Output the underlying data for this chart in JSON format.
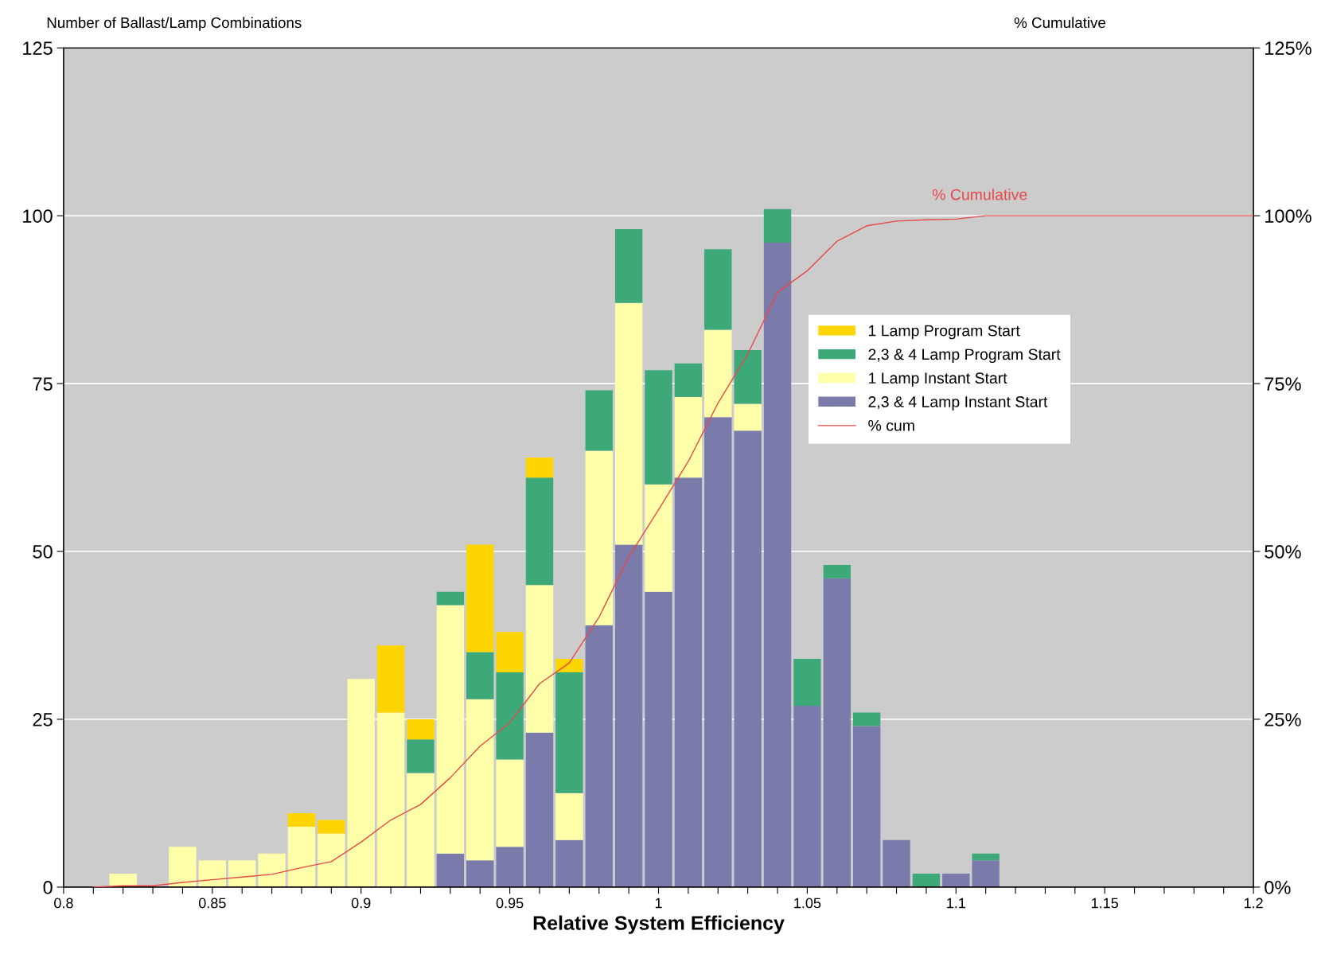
{
  "chart_data": {
    "type": "bar",
    "stacked": true,
    "xlabel": "Relative System Efficiency",
    "ylabel": "Number of Ballast/Lamp Combinations",
    "y2label": "% Cumulative",
    "x": [
      0.82,
      0.83,
      0.84,
      0.85,
      0.86,
      0.87,
      0.88,
      0.89,
      0.9,
      0.91,
      0.92,
      0.93,
      0.94,
      0.95,
      0.96,
      0.97,
      0.98,
      0.99,
      1.0,
      1.01,
      1.02,
      1.03,
      1.04,
      1.05,
      1.06,
      1.07,
      1.08,
      1.09,
      1.1,
      1.11
    ],
    "series": [
      {
        "name": "2,3 & 4 Lamp Instant Start",
        "color": "#7b7bab",
        "values": [
          0,
          0,
          0,
          0,
          0,
          0,
          0,
          0,
          0,
          0,
          0,
          5,
          4,
          6,
          23,
          7,
          39,
          51,
          44,
          61,
          70,
          68,
          96,
          27,
          46,
          24,
          7,
          0,
          2,
          4
        ]
      },
      {
        "name": "1 Lamp Instant Start",
        "color": "#ffffaa",
        "values": [
          2,
          0,
          6,
          4,
          4,
          5,
          9,
          8,
          31,
          26,
          17,
          37,
          24,
          13,
          22,
          7,
          26,
          36,
          16,
          12,
          13,
          4,
          0,
          0,
          0,
          0,
          0,
          0,
          0,
          0
        ]
      },
      {
        "name": "2,3 & 4 Lamp Program Start",
        "color": "#3da878",
        "values": [
          0,
          0,
          0,
          0,
          0,
          0,
          0,
          0,
          0,
          0,
          5,
          2,
          7,
          13,
          16,
          18,
          9,
          11,
          17,
          5,
          12,
          8,
          5,
          7,
          2,
          2,
          0,
          2,
          0,
          1
        ]
      },
      {
        "name": "1 Lamp Program Start",
        "color": "#ffd500",
        "values": [
          0,
          0,
          0,
          0,
          0,
          0,
          2,
          2,
          0,
          10,
          3,
          0,
          16,
          6,
          3,
          2,
          0,
          0,
          0,
          0,
          0,
          0,
          0,
          0,
          0,
          0,
          0,
          0,
          0,
          0
        ]
      },
      {
        "name": "% cum",
        "type": "line",
        "axis": "y2",
        "color": "#e84848",
        "marker": "none",
        "line_style": "solid",
        "x": [
          0.81,
          0.82,
          0.83,
          0.84,
          0.85,
          0.86,
          0.87,
          0.88,
          0.89,
          0.9,
          0.91,
          0.92,
          0.93,
          0.94,
          0.95,
          0.96,
          0.97,
          0.98,
          0.99,
          1.0,
          1.01,
          1.02,
          1.03,
          1.04,
          1.05,
          1.06,
          1.07,
          1.08,
          1.09,
          1.1,
          1.11,
          1.12,
          1.13,
          1.14,
          1.15,
          1.16,
          1.17,
          1.18,
          1.19,
          1.2
        ],
        "values": [
          0,
          0.2,
          0.2,
          0.7,
          1.1,
          1.5,
          1.9,
          2.9,
          3.8,
          6.7,
          10,
          12.3,
          16.3,
          21,
          24.5,
          30.3,
          33.4,
          40.2,
          49.2,
          56.2,
          63.4,
          72.1,
          79.4,
          88.6,
          91.8,
          96.2,
          98.5,
          99.2,
          99.4,
          99.5,
          100,
          100,
          100,
          100,
          100,
          100,
          100,
          100,
          100,
          100
        ]
      }
    ],
    "xlim": [
      0.8,
      1.2
    ],
    "xticks": [
      0.8,
      {
        "value": 0.81,
        "label": null
      },
      {
        "value": 0.82,
        "label": null
      },
      {
        "value": 0.83,
        "label": null
      },
      {
        "value": 0.84,
        "label": null
      },
      0.85,
      {
        "value": 0.86,
        "label": null
      },
      {
        "value": 0.87,
        "label": null
      },
      {
        "value": 0.88,
        "label": null
      },
      {
        "value": 0.89,
        "label": null
      },
      0.9,
      {
        "value": 0.91,
        "label": null
      },
      {
        "value": 0.92,
        "label": null
      },
      {
        "value": 0.93,
        "label": null
      },
      {
        "value": 0.94,
        "label": null
      },
      0.95,
      {
        "value": 0.96,
        "label": null
      },
      {
        "value": 0.97,
        "label": null
      },
      {
        "value": 0.98,
        "label": null
      },
      {
        "value": 0.99,
        "label": null
      },
      1,
      {
        "value": 1.01,
        "label": null
      },
      {
        "value": 1.02,
        "label": null
      },
      {
        "value": 1.03,
        "label": null
      },
      {
        "value": 1.04,
        "label": null
      },
      1.05,
      {
        "value": 1.06,
        "label": null
      },
      {
        "value": 1.07,
        "label": null
      },
      {
        "value": 1.08,
        "label": null
      },
      {
        "value": 1.09,
        "label": null
      },
      1.1,
      {
        "value": 1.11,
        "label": null
      },
      {
        "value": 1.12,
        "label": null
      },
      {
        "value": 1.13,
        "label": null
      },
      {
        "value": 1.14,
        "label": null
      },
      1.15,
      {
        "value": 1.16,
        "label": null
      },
      {
        "value": 1.17,
        "label": null
      },
      {
        "value": 1.18,
        "label": null
      },
      {
        "value": 1.19,
        "label": null
      },
      1.2
    ],
    "ylim": [
      0,
      125
    ],
    "yticks": [
      0,
      25,
      50,
      75,
      100,
      125
    ],
    "y2lim": [
      0,
      125
    ],
    "y2ticks": [
      {
        "value": 0,
        "label": "0%"
      },
      {
        "value": 25,
        "label": "25%"
      },
      {
        "value": 50,
        "label": "50%"
      },
      {
        "value": 75,
        "label": "75%"
      },
      {
        "value": 100,
        "label": "100%"
      },
      {
        "value": 125,
        "label": "125%"
      }
    ],
    "annotations": [
      "% Cumulative"
    ],
    "grid": "y",
    "legend": "right"
  }
}
